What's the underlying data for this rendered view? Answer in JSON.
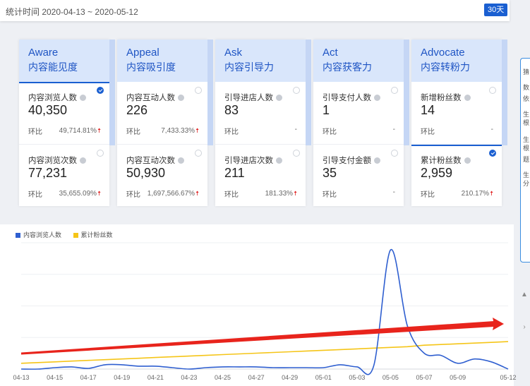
{
  "header": {
    "date_range": "统计时间 2020-04-13 ~ 2020-05-12",
    "range_button": "30天"
  },
  "cards": [
    {
      "en": "Aware",
      "cn": "内容能见度",
      "metrics": [
        {
          "label": "内容浏览人数",
          "value": "40,350",
          "cmp_label": "环比",
          "pct": "49,714.81%",
          "up": true,
          "selected": true,
          "checked": true
        },
        {
          "label": "内容浏览次数",
          "value": "77,231",
          "cmp_label": "环比",
          "pct": "35,655.09%",
          "up": true,
          "selected": false,
          "checked": false
        }
      ]
    },
    {
      "en": "Appeal",
      "cn": "内容吸引度",
      "metrics": [
        {
          "label": "内容互动人数",
          "value": "226",
          "cmp_label": "环比",
          "pct": "7,433.33%",
          "up": true,
          "selected": false,
          "checked": false
        },
        {
          "label": "内容互动次数",
          "value": "50,930",
          "cmp_label": "环比",
          "pct": "1,697,566.67%",
          "up": true,
          "selected": false,
          "checked": false
        }
      ]
    },
    {
      "en": "Ask",
      "cn": "内容引导力",
      "metrics": [
        {
          "label": "引导进店人数",
          "value": "83",
          "cmp_label": "环比",
          "pct": "-",
          "up": false,
          "selected": false,
          "checked": false
        },
        {
          "label": "引导进店次数",
          "value": "211",
          "cmp_label": "环比",
          "pct": "181.33%",
          "up": true,
          "selected": false,
          "checked": false
        }
      ]
    },
    {
      "en": "Act",
      "cn": "内容获客力",
      "metrics": [
        {
          "label": "引导支付人数",
          "value": "1",
          "cmp_label": "环比",
          "pct": "-",
          "up": false,
          "selected": false,
          "checked": false
        },
        {
          "label": "引导支付金额",
          "value": "35",
          "cmp_label": "环比",
          "pct": "-",
          "up": false,
          "selected": false,
          "checked": false
        }
      ]
    },
    {
      "en": "Advocate",
      "cn": "内容转粉力",
      "metrics": [
        {
          "label": "新增粉丝数",
          "value": "14",
          "cmp_label": "环比",
          "pct": "-",
          "up": false,
          "selected": false,
          "checked": false
        },
        {
          "label": "累计粉丝数",
          "value": "2,959",
          "cmp_label": "环比",
          "pct": "210.17%",
          "up": true,
          "selected": true,
          "checked": true
        }
      ]
    }
  ],
  "side_panel": [
    "猜",
    "数",
    "依",
    "生",
    "根",
    "生",
    "根",
    "题",
    "生",
    "分"
  ],
  "colors": {
    "series1": "#2f5fd0",
    "series2": "#f5c518",
    "trend_arrow": "#e8241c",
    "accent": "#1a5fd1"
  },
  "chart_data": {
    "type": "line",
    "x": [
      "04-13",
      "04-14",
      "04-15",
      "04-16",
      "04-17",
      "04-18",
      "04-19",
      "04-20",
      "04-21",
      "04-22",
      "04-23",
      "04-24",
      "04-25",
      "04-26",
      "04-27",
      "04-28",
      "04-29",
      "04-30",
      "05-01",
      "05-02",
      "05-03",
      "05-04",
      "05-05",
      "05-06",
      "05-07",
      "05-08",
      "05-09",
      "05-10",
      "05-11",
      "05-12"
    ],
    "x_tick_labels": [
      "04-13",
      "04-15",
      "04-17",
      "04-19",
      "04-21",
      "04-23",
      "04-25",
      "04-27",
      "04-29",
      "05-01",
      "05-03",
      "05-05",
      "05-07",
      "05-09",
      "05-12"
    ],
    "series": [
      {
        "name": "内容浏览人数",
        "values": [
          0,
          0,
          2,
          3,
          1,
          6,
          6,
          4,
          4,
          2,
          0,
          2,
          3,
          3,
          3,
          2,
          2,
          2,
          2,
          6,
          3,
          5,
          165,
          60,
          22,
          19,
          8,
          14,
          10,
          0
        ]
      },
      {
        "name": "累计粉丝数",
        "values": [
          8,
          9,
          10,
          11,
          12,
          13,
          14,
          15,
          16,
          17,
          18,
          19,
          20,
          21,
          22,
          23,
          24,
          25,
          26,
          27,
          28,
          29,
          30,
          31,
          33,
          34,
          35,
          36,
          37,
          38
        ]
      }
    ],
    "ylim": [
      0,
      175
    ],
    "legend": "top-left",
    "grid": true,
    "trend_arrow": {
      "from": "04-13",
      "to": "05-12"
    }
  }
}
